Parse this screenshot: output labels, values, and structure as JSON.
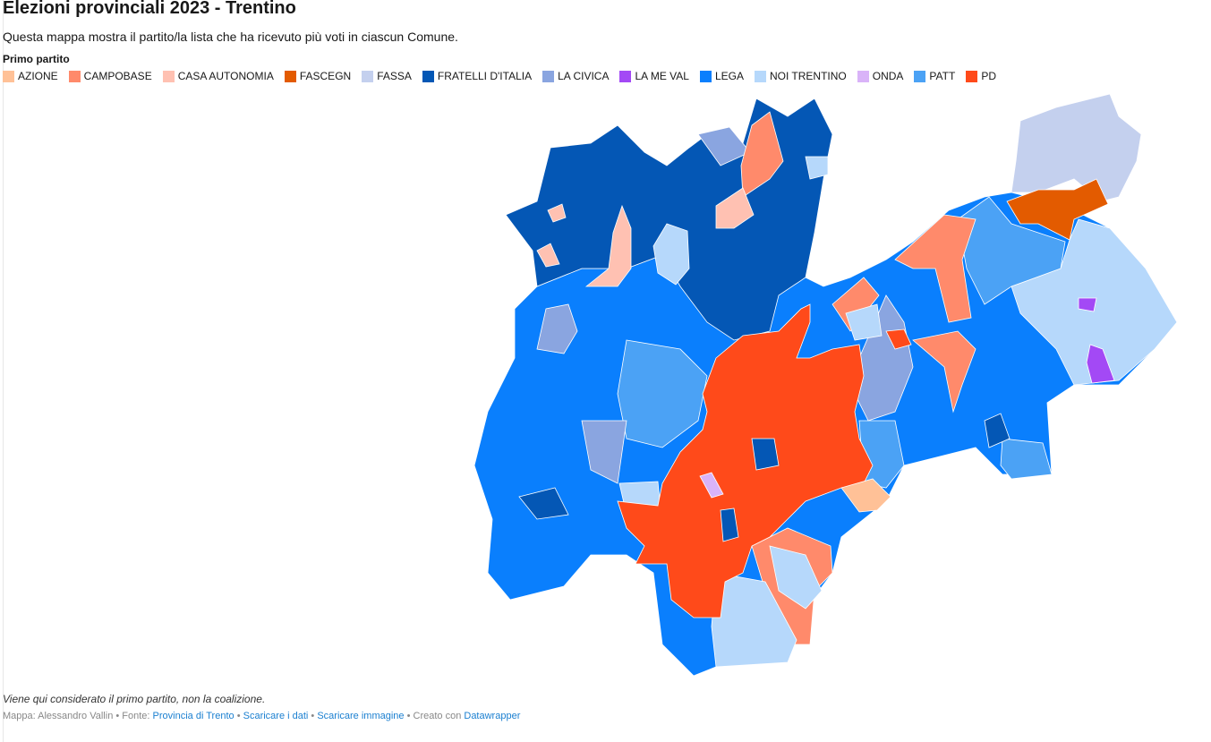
{
  "title": "Elezioni provinciali 2023 - Trentino",
  "subtitle": "Questa mappa mostra il partito/la lista che ha ricevuto più voti in ciascun Comune.",
  "legend": {
    "title": "Primo partito",
    "items": [
      {
        "label": "AZIONE",
        "color": "#ffc197"
      },
      {
        "label": "CAMPOBASE",
        "color": "#ff8a6b"
      },
      {
        "label": "CASA AUTONOMIA",
        "color": "#ffc1b2"
      },
      {
        "label": "FASCEGN",
        "color": "#e35b00"
      },
      {
        "label": "FASSA",
        "color": "#c4d0ee"
      },
      {
        "label": "FRATELLI D'ITALIA",
        "color": "#0457b5"
      },
      {
        "label": "LA CIVICA",
        "color": "#8aa5e0"
      },
      {
        "label": "LA ME VAL",
        "color": "#a349f5"
      },
      {
        "label": "LEGA",
        "color": "#0a7ffd"
      },
      {
        "label": "NOI TRENTINO",
        "color": "#b6d8fb"
      },
      {
        "label": "ONDA",
        "color": "#d9b3f8"
      },
      {
        "label": "PATT",
        "color": "#4ba2f5"
      },
      {
        "label": "PD",
        "color": "#ff4a1a"
      }
    ]
  },
  "note": "Viene qui considerato il primo partito, non la coalizione.",
  "footer": {
    "map_prefix": "Mappa: Alessandro Vallin • Fonte: ",
    "source": "Provincia di Trento",
    "sep1": " • ",
    "data_link": "Scaricare i dati",
    "sep2": " • ",
    "image_link": "Scaricare immagine",
    "created": " • Creato con ",
    "datawrapper": "Datawrapper"
  }
}
